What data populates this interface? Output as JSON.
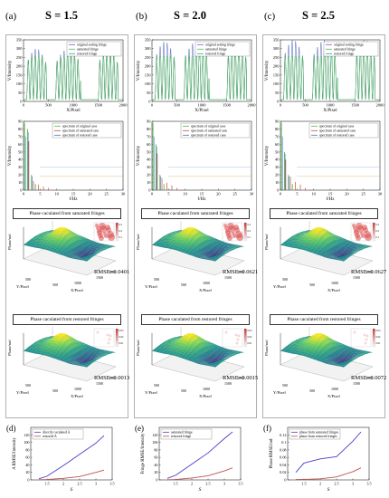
{
  "panels": [
    {
      "letter": "(a)",
      "s_label": "S = 1.5",
      "rmse_sat": "RMSE=0.0401",
      "rmse_res": "RMSE=0.0013"
    },
    {
      "letter": "(b)",
      "s_label": "S = 2.0",
      "rmse_sat": "RMSE=0.0621",
      "rmse_res": "RMSE=0.0015"
    },
    {
      "letter": "(c)",
      "s_label": "S = 2.5",
      "rmse_sat": "RMSE=0.0627",
      "rmse_res": "RMSE=0.0072"
    }
  ],
  "labels": {
    "caption_sat": "Phase caculated from saturated fringes",
    "caption_res": "Phase caculated from restored fringes",
    "phase_axis": "Phase/rad",
    "x_pixel": "X/Pixel",
    "y_pixel": "Y/Pixel"
  },
  "inset_ticks": {
    "sat": [
      "0.3",
      "0.2",
      "0.1"
    ],
    "res": [
      "0.03",
      "0.02",
      "0.01"
    ]
  },
  "chart_data": [
    {
      "type": "line",
      "id": "fringe-profile",
      "xlabel": "X/Pixel",
      "ylabel": "V/Intensity",
      "xlim": [
        0,
        2000
      ],
      "ylim": [
        0,
        350
      ],
      "xticks": [
        "0",
        "500",
        "1000",
        "1500",
        "2000"
      ],
      "yticks": [
        "0",
        "50",
        "100",
        "150",
        "200",
        "250",
        "300",
        "350"
      ],
      "legend": [
        "original setting fringe",
        "saturated fringe",
        "restored fringe"
      ],
      "legend_position": "top-right",
      "series_colors": [
        "#7a5cc8",
        "#5ab84a",
        "#2aa8a8"
      ],
      "saturation_levels": [
        255,
        255,
        255
      ],
      "peak_levels": [
        300,
        340,
        350
      ]
    },
    {
      "type": "line",
      "id": "spectrum",
      "xlabel": "f/Hz",
      "ylabel": "V/Intensity",
      "xlim": [
        0,
        30
      ],
      "ylim": [
        0,
        90
      ],
      "xticks": [
        "0",
        "5",
        "10",
        "15",
        "20",
        "25",
        "30"
      ],
      "yticks": [
        "0",
        "10",
        "20",
        "30",
        "40",
        "50",
        "60",
        "70",
        "80",
        "90"
      ],
      "legend": [
        "spectrum of original case",
        "spectrum of saturated case",
        "spectrum of restored case"
      ],
      "legend_position": "top-right",
      "series_colors": [
        "#5ab84a",
        "#d04a3a",
        "#3a7ad0"
      ]
    },
    {
      "type": "line",
      "id": "d",
      "panel_letter": "(d)",
      "xlabel": "S",
      "ylabel": "A RMSE/Intensity",
      "xlim": [
        1,
        3.5
      ],
      "ylim": [
        0,
        140
      ],
      "xticks": [
        "1.5",
        "2",
        "2.5",
        "3",
        "3.5"
      ],
      "yticks": [
        "0",
        "20",
        "40",
        "60",
        "80",
        "100",
        "120"
      ],
      "legend_position": "top-left",
      "x": [
        1.25,
        1.5,
        2.0,
        2.5,
        3.0,
        3.25
      ],
      "series": [
        {
          "name": "directly caculated A",
          "color": "#4a3ec8",
          "values": [
            3,
            10,
            38,
            68,
            98,
            118
          ]
        },
        {
          "name": "restored A",
          "color": "#c0504d",
          "values": [
            0.5,
            1,
            4,
            9,
            20,
            26
          ]
        }
      ]
    },
    {
      "type": "line",
      "id": "e",
      "panel_letter": "(e)",
      "xlabel": "S",
      "ylabel": "Fringe RMSE/Intensity",
      "xlim": [
        1,
        3.5
      ],
      "ylim": [
        0,
        140
      ],
      "xticks": [
        "1.5",
        "2",
        "2.5",
        "3",
        "3.5"
      ],
      "yticks": [
        "0",
        "20",
        "40",
        "60",
        "80",
        "100",
        "120"
      ],
      "legend_position": "top-left",
      "x": [
        1.25,
        1.5,
        2.0,
        2.5,
        3.0,
        3.25
      ],
      "series": [
        {
          "name": "saturated fringe",
          "color": "#4a3ec8",
          "values": [
            4,
            12,
            42,
            72,
            110,
            128
          ]
        },
        {
          "name": "restored fringe",
          "color": "#c0504d",
          "values": [
            0.5,
            1,
            5,
            11,
            24,
            32
          ]
        }
      ]
    },
    {
      "type": "line",
      "id": "f",
      "panel_letter": "(f)",
      "xlabel": "S",
      "ylabel": "Phase RMSE/rad",
      "xlim": [
        1,
        3.5
      ],
      "ylim": [
        0,
        0.14
      ],
      "xticks": [
        "1.5",
        "2",
        "2.5",
        "3",
        "3.5"
      ],
      "yticks": [
        "0",
        "0.02",
        "0.04",
        "0.06",
        "0.08",
        "0.1",
        "0.12"
      ],
      "legend_position": "top-left",
      "x": [
        1.25,
        1.5,
        2.0,
        2.5,
        3.0,
        3.25
      ],
      "series": [
        {
          "name": "phase from saturated fringes",
          "color": "#4a3ec8",
          "values": [
            0.02,
            0.045,
            0.056,
            0.062,
            0.103,
            0.128
          ]
        },
        {
          "name": "phase from restored fringes",
          "color": "#c0504d",
          "values": [
            0.001,
            0.0015,
            0.003,
            0.008,
            0.022,
            0.032
          ]
        }
      ]
    }
  ]
}
